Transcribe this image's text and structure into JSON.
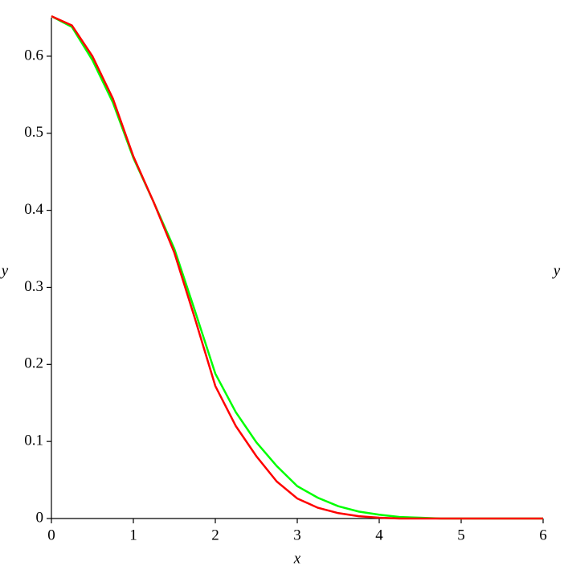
{
  "chart_data": {
    "type": "line",
    "xlabel": "x",
    "ylabel": "y",
    "y2label": "y",
    "x": [
      0,
      0.25,
      0.5,
      0.75,
      1,
      1.25,
      1.5,
      1.75,
      2,
      2.25,
      2.5,
      2.75,
      3,
      3.25,
      3.5,
      3.75,
      4,
      4.25,
      4.5,
      4.75,
      5,
      5.25,
      5.5,
      5.75,
      6
    ],
    "series": [
      {
        "color": "#00ff00",
        "values": [
          0.652,
          0.638,
          0.595,
          0.54,
          0.468,
          0.41,
          0.35,
          0.27,
          0.188,
          0.138,
          0.099,
          0.068,
          0.042,
          0.027,
          0.016,
          0.009,
          0.005,
          0.002,
          0.001,
          0,
          0,
          0,
          0,
          0,
          0
        ]
      },
      {
        "color": "#ff0000",
        "values": [
          0.652,
          0.64,
          0.6,
          0.545,
          0.47,
          0.41,
          0.345,
          0.26,
          0.172,
          0.12,
          0.081,
          0.048,
          0.026,
          0.014,
          0.007,
          0.003,
          0.001,
          0,
          0,
          0,
          0,
          0,
          0,
          0,
          0
        ]
      }
    ],
    "xlim": [
      0,
      6
    ],
    "xticks": [
      0,
      1,
      2,
      3,
      4,
      5,
      6
    ],
    "ylim": [
      0,
      0.65
    ],
    "yticks": [
      0,
      0.1,
      0.2,
      0.3,
      0.4,
      0.5,
      0.6
    ]
  }
}
